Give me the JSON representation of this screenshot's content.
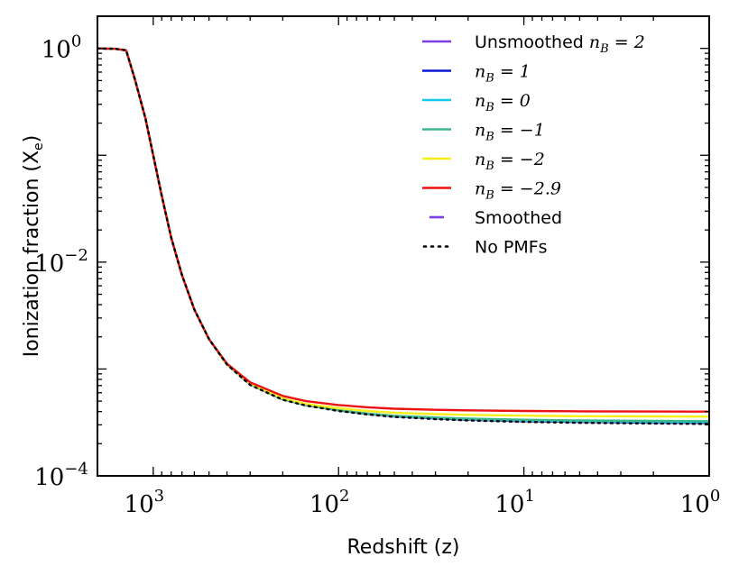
{
  "chart_data": {
    "type": "line",
    "title": "",
    "xlabel": "Redshift (z)",
    "ylabel": "Ionization fraction (X",
    "ylabel_sub": "e",
    "ylabel_close": ")",
    "x_scale": "log",
    "y_scale": "log",
    "x_reversed": true,
    "xlim": [
      2000,
      1
    ],
    "ylim": [
      0.0001,
      2
    ],
    "x_ticks": [
      {
        "value": 1000,
        "base": "10",
        "exp": "3"
      },
      {
        "value": 100,
        "base": "10",
        "exp": "2"
      },
      {
        "value": 10,
        "base": "10",
        "exp": "1"
      },
      {
        "value": 1,
        "base": "10",
        "exp": "0"
      }
    ],
    "y_ticks": [
      {
        "value": 1,
        "base": "10",
        "exp": "0"
      },
      {
        "value": 0.01,
        "base": "10",
        "exp": "−2"
      },
      {
        "value": 0.0001,
        "base": "10",
        "exp": "−4"
      }
    ],
    "legend_position": "top-right",
    "series": [
      {
        "name": "Unsmoothed n_B = 2",
        "label_text": "Unsmoothed ",
        "label_math": "n",
        "label_sub": "B",
        "label_rest": " = 2",
        "color": "#7b3fe4",
        "style": "solid",
        "x": [
          2000,
          1600,
          1400,
          1250,
          1100,
          1000,
          900,
          800,
          700,
          600,
          500,
          400,
          300,
          200,
          150,
          100,
          70,
          50,
          30,
          20,
          10,
          5,
          2,
          1
        ],
        "y": [
          1.0,
          0.99,
          0.96,
          0.5,
          0.22,
          0.1,
          0.042,
          0.017,
          0.0076,
          0.0036,
          0.0019,
          0.0011,
          0.00072,
          0.00052,
          0.00046,
          0.00041,
          0.00038,
          0.00036,
          0.000345,
          0.000335,
          0.000325,
          0.00032,
          0.000315,
          0.000312
        ]
      },
      {
        "name": "n_B = 1",
        "label_text": "",
        "label_math": "n",
        "label_sub": "B",
        "label_rest": " = 1",
        "color": "#0a18d6",
        "style": "solid",
        "x": [
          2000,
          1600,
          1400,
          1250,
          1100,
          1000,
          900,
          800,
          700,
          600,
          500,
          400,
          300,
          200,
          150,
          100,
          70,
          50,
          30,
          20,
          10,
          5,
          2,
          1
        ],
        "y": [
          1.0,
          0.99,
          0.96,
          0.5,
          0.22,
          0.1,
          0.042,
          0.017,
          0.0076,
          0.0036,
          0.0019,
          0.0011,
          0.00072,
          0.00052,
          0.00046,
          0.00041,
          0.00038,
          0.00036,
          0.000345,
          0.000335,
          0.000325,
          0.00032,
          0.000315,
          0.000313
        ]
      },
      {
        "name": "n_B = 0",
        "label_text": "",
        "label_math": "n",
        "label_sub": "B",
        "label_rest": " = 0",
        "color": "#12c8ec",
        "style": "solid",
        "x": [
          2000,
          1600,
          1400,
          1250,
          1100,
          1000,
          900,
          800,
          700,
          600,
          500,
          400,
          300,
          200,
          150,
          100,
          70,
          50,
          30,
          20,
          10,
          5,
          2,
          1
        ],
        "y": [
          1.0,
          0.99,
          0.96,
          0.5,
          0.22,
          0.1,
          0.042,
          0.017,
          0.0076,
          0.0036,
          0.0019,
          0.0011,
          0.00072,
          0.00052,
          0.00046,
          0.00041,
          0.00038,
          0.000362,
          0.000348,
          0.000338,
          0.000328,
          0.000323,
          0.000319,
          0.000317
        ]
      },
      {
        "name": "n_B = -1",
        "label_text": "",
        "label_math": "n",
        "label_sub": "B",
        "label_rest": " = −1",
        "color": "#3cb88a",
        "style": "solid",
        "x": [
          2000,
          1600,
          1400,
          1250,
          1100,
          1000,
          900,
          800,
          700,
          600,
          500,
          400,
          300,
          200,
          150,
          100,
          70,
          50,
          30,
          20,
          10,
          5,
          2,
          1
        ],
        "y": [
          1.0,
          0.99,
          0.96,
          0.5,
          0.22,
          0.1,
          0.042,
          0.017,
          0.0076,
          0.0036,
          0.0019,
          0.0011,
          0.00072,
          0.00052,
          0.00046,
          0.000412,
          0.000383,
          0.000365,
          0.000352,
          0.000343,
          0.000335,
          0.00033,
          0.000327,
          0.000325
        ]
      },
      {
        "name": "n_B = -2",
        "label_text": "",
        "label_math": "n",
        "label_sub": "B",
        "label_rest": " = −2",
        "color": "#f5ee1a",
        "style": "solid",
        "x": [
          2000,
          1600,
          1400,
          1250,
          1100,
          1000,
          900,
          800,
          700,
          600,
          500,
          400,
          300,
          200,
          150,
          100,
          70,
          50,
          30,
          20,
          10,
          5,
          2,
          1
        ],
        "y": [
          1.0,
          0.99,
          0.96,
          0.5,
          0.22,
          0.1,
          0.042,
          0.017,
          0.0076,
          0.0036,
          0.0019,
          0.0011,
          0.00073,
          0.00053,
          0.00047,
          0.00043,
          0.000405,
          0.00039,
          0.000378,
          0.000372,
          0.000366,
          0.000362,
          0.00036,
          0.000358
        ]
      },
      {
        "name": "n_B = -2.9",
        "label_text": "",
        "label_math": "n",
        "label_sub": "B",
        "label_rest": " = −2.9",
        "color": "#ee1111",
        "style": "solid",
        "x": [
          2000,
          1600,
          1400,
          1250,
          1100,
          1000,
          900,
          800,
          700,
          600,
          500,
          400,
          300,
          200,
          150,
          100,
          70,
          50,
          30,
          20,
          10,
          5,
          2,
          1
        ],
        "y": [
          1.0,
          0.99,
          0.96,
          0.5,
          0.22,
          0.1,
          0.042,
          0.017,
          0.0076,
          0.0036,
          0.0019,
          0.00112,
          0.00075,
          0.00056,
          0.0005,
          0.00046,
          0.000438,
          0.000425,
          0.000415,
          0.00041,
          0.000405,
          0.000402,
          0.0004,
          0.000399
        ]
      },
      {
        "name": "Smoothed",
        "label_text": "Smoothed",
        "label_math": "",
        "label_sub": "",
        "label_rest": "",
        "color": "#7b3fe4",
        "style": "dashed",
        "x": [],
        "y": []
      },
      {
        "name": "No PMFs",
        "label_text": "No PMFs",
        "label_math": "",
        "label_sub": "",
        "label_rest": "",
        "color": "#000000",
        "style": "dotted",
        "x": [
          2000,
          1600,
          1400,
          1250,
          1100,
          1000,
          900,
          800,
          700,
          600,
          500,
          400,
          300,
          200,
          150,
          100,
          70,
          50,
          30,
          20,
          10,
          5,
          2,
          1
        ],
        "y": [
          1.0,
          0.99,
          0.96,
          0.5,
          0.22,
          0.1,
          0.042,
          0.017,
          0.0076,
          0.0036,
          0.0019,
          0.0011,
          0.00071,
          0.000515,
          0.000455,
          0.000405,
          0.000376,
          0.000356,
          0.00034,
          0.00033,
          0.00032,
          0.000314,
          0.000309,
          0.000306
        ]
      }
    ]
  }
}
